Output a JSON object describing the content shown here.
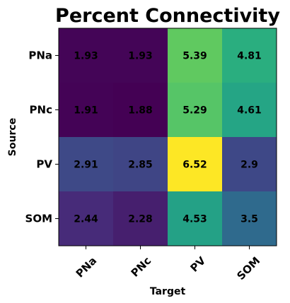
{
  "chart_data": {
    "type": "heatmap",
    "title": "Percent Connectivity",
    "xlabel": "Target",
    "ylabel": "Source",
    "x_categories": [
      "PNa",
      "PNc",
      "PV",
      "SOM"
    ],
    "y_categories": [
      "PNa",
      "PNc",
      "PV",
      "SOM"
    ],
    "values": [
      [
        1.93,
        1.93,
        5.39,
        4.81
      ],
      [
        1.91,
        1.88,
        5.29,
        4.61
      ],
      [
        2.91,
        2.85,
        6.52,
        2.9
      ],
      [
        2.44,
        2.28,
        4.53,
        3.5
      ]
    ],
    "colormap": "viridis",
    "annotated": true
  }
}
